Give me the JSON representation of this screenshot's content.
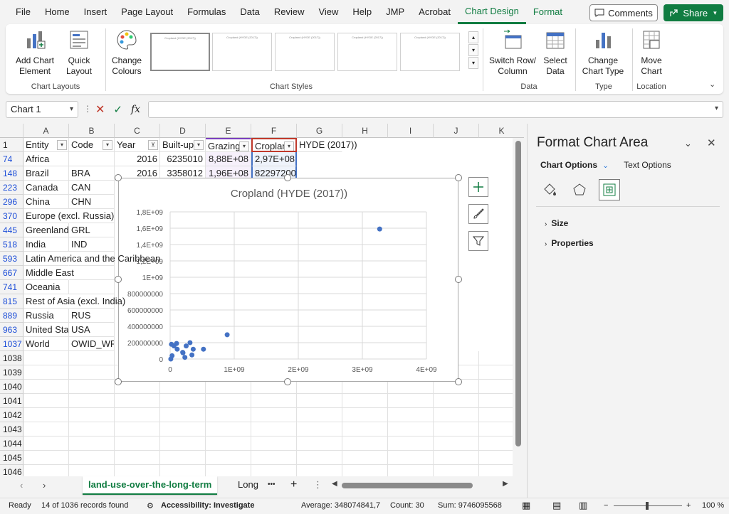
{
  "menu": {
    "items": [
      "File",
      "Home",
      "Insert",
      "Page Layout",
      "Formulas",
      "Data",
      "Review",
      "View",
      "Help",
      "JMP",
      "Acrobat",
      "Chart Design",
      "Format"
    ],
    "active": "Chart Design",
    "comments_label": "Comments",
    "share_label": "Share"
  },
  "ribbon": {
    "add_chart_element": "Add Chart Element",
    "quick_layout": "Quick Layout",
    "change_colours": "Change Colours",
    "switch_row_column": "Switch Row/ Column",
    "select_data": "Select Data",
    "change_chart_type": "Change Chart Type",
    "move_chart": "Move Chart",
    "groups": {
      "chart_layouts": "Chart Layouts",
      "chart_styles": "Chart Styles",
      "data": "Data",
      "type": "Type",
      "location": "Location"
    },
    "style_thumb_title": "Cropland (HYDE (2017))"
  },
  "formula_bar": {
    "name_box": "Chart 1",
    "fx": "fx",
    "value": ""
  },
  "columns": [
    "A",
    "B",
    "C",
    "D",
    "E",
    "F",
    "G",
    "H",
    "I",
    "J",
    "K"
  ],
  "header_row": {
    "row": "1",
    "entity": "Entity",
    "code": "Code",
    "year": "Year",
    "builtup": "Built-up",
    "grazing": "Grazing",
    "cropland": "Croplan",
    "hyde": "HYDE (2017))"
  },
  "rows": [
    {
      "row": "74",
      "entity": "Africa",
      "code": "",
      "year": "2016",
      "builtup": "6235010",
      "grazing": "8,88E+08",
      "cropland": "2,97E+08"
    },
    {
      "row": "148",
      "entity": "Brazil",
      "code": "BRA",
      "year": "2016",
      "builtup": "3358012",
      "grazing": "1,96E+08",
      "cropland": "82297200"
    },
    {
      "row": "223",
      "entity": "Canada",
      "code": "CAN"
    },
    {
      "row": "296",
      "entity": "China",
      "code": "CHN"
    },
    {
      "row": "370",
      "entity": "Europe (excl. Russia)",
      "code": ""
    },
    {
      "row": "445",
      "entity": "Greenland",
      "code": "GRL"
    },
    {
      "row": "518",
      "entity": "India",
      "code": "IND"
    },
    {
      "row": "593",
      "entity": "Latin America and the Caribbean",
      "code": ""
    },
    {
      "row": "667",
      "entity": "Middle East",
      "code": ""
    },
    {
      "row": "741",
      "entity": "Oceania",
      "code": ""
    },
    {
      "row": "815",
      "entity": "Rest of Asia (excl. India)",
      "code": ""
    },
    {
      "row": "889",
      "entity": "Russia",
      "code": "RUS"
    },
    {
      "row": "963",
      "entity": "United States",
      "code": "USA"
    },
    {
      "row": "1037",
      "entity": "World",
      "code": "OWID_WRL"
    }
  ],
  "empty_rows": [
    "1038",
    "1039",
    "1040",
    "1041",
    "1042",
    "1043",
    "1044",
    "1045",
    "1046"
  ],
  "chart_data": {
    "type": "scatter",
    "title": "Cropland (HYDE (2017))",
    "xlabel": "",
    "ylabel": "",
    "xlim": [
      0,
      4000000000
    ],
    "ylim": [
      0,
      1800000000
    ],
    "x_ticks": [
      "0",
      "1E+09",
      "2E+09",
      "3E+09",
      "4E+09"
    ],
    "y_ticks": [
      "0",
      "200000000",
      "400000000",
      "600000000",
      "800000000",
      "1E+09",
      "1,2E+09",
      "1,4E+09",
      "1,6E+09",
      "1,8E+09"
    ],
    "grid": true,
    "series": [
      {
        "color": "#4472c4",
        "points": [
          [
            3270000000,
            1590000000
          ],
          [
            890000000,
            297000000
          ],
          [
            20000000,
            180000000
          ],
          [
            100000000,
            190000000
          ],
          [
            110000000,
            120000000
          ],
          [
            200000000,
            75000000
          ],
          [
            250000000,
            160000000
          ],
          [
            310000000,
            200000000
          ],
          [
            340000000,
            50000000
          ],
          [
            360000000,
            120000000
          ],
          [
            520000000,
            120000000
          ],
          [
            30000000,
            40000000
          ],
          [
            230000000,
            20000000
          ],
          [
            10000000,
            0
          ],
          [
            60000000,
            160000000
          ],
          [
            196000000,
            82000000
          ]
        ]
      }
    ]
  },
  "sheets": {
    "active": "land-use-over-the-long-term",
    "other": "Long",
    "more": "•••",
    "add": "+"
  },
  "status": {
    "ready": "Ready",
    "records": "14 of 1036 records found",
    "accessibility": "Accessibility: Investigate",
    "average": "Average: 348074841,7",
    "count": "Count: 30",
    "sum": "Sum: 9746095568",
    "zoom": "100 %"
  },
  "pane": {
    "title": "Format Chart Area",
    "tab_chart_options": "Chart Options",
    "tab_text_options": "Text Options",
    "section_size": "Size",
    "section_properties": "Properties"
  }
}
